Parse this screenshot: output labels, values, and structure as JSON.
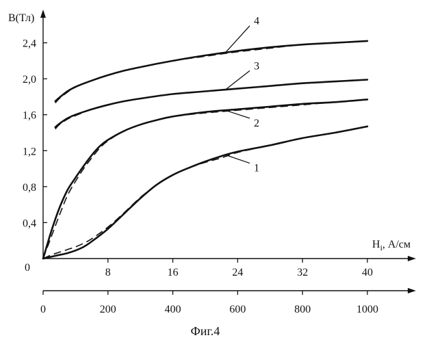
{
  "chart_data": {
    "type": "line",
    "title": "",
    "caption": "Фиг.4",
    "ylabel": "B(Тл)",
    "xlabel_main": "H",
    "xlabel_sub": "i",
    "xlabel_unit": ", А/см",
    "origin_label": "0",
    "ylim": [
      0,
      2.8
    ],
    "xlim": [
      0,
      40
    ],
    "y_ticks": [
      {
        "value": 0.4,
        "label": "0,4"
      },
      {
        "value": 0.8,
        "label": "0,8"
      },
      {
        "value": 1.2,
        "label": "1,2"
      },
      {
        "value": 1.6,
        "label": "1,6"
      },
      {
        "value": 2.0,
        "label": "2,0"
      },
      {
        "value": 2.4,
        "label": "2,4"
      }
    ],
    "x_ticks": [
      {
        "value": 8,
        "label": "8"
      },
      {
        "value": 16,
        "label": "16"
      },
      {
        "value": 24,
        "label": "24"
      },
      {
        "value": 32,
        "label": "32"
      },
      {
        "value": 40,
        "label": "40"
      }
    ],
    "x2_ticks": [
      {
        "value": 0,
        "label": "0"
      },
      {
        "value": 200,
        "label": "200"
      },
      {
        "value": 400,
        "label": "400"
      },
      {
        "value": 600,
        "label": "600"
      },
      {
        "value": 800,
        "label": "800"
      },
      {
        "value": 1000,
        "label": "1000"
      }
    ],
    "x2_range": [
      0,
      1000
    ],
    "grid": false,
    "series": [
      {
        "label": "1",
        "x": [
          0,
          1,
          2,
          3,
          4,
          5,
          6,
          8,
          10,
          12,
          14,
          16,
          18,
          20,
          22,
          24,
          28,
          32,
          36,
          40
        ],
        "y": [
          0,
          0.02,
          0.04,
          0.06,
          0.09,
          0.13,
          0.19,
          0.33,
          0.5,
          0.67,
          0.82,
          0.93,
          1.01,
          1.08,
          1.14,
          1.19,
          1.26,
          1.34,
          1.4,
          1.47
        ],
        "y_dash": [
          0,
          0.04,
          0.07,
          0.1,
          0.13,
          0.17,
          0.22,
          0.35,
          0.51,
          0.68,
          0.82,
          0.93,
          1.01,
          1.07,
          1.12,
          1.18,
          1.26,
          1.34,
          1.4,
          1.47
        ],
        "label_at": [
          26,
          1.0
        ]
      },
      {
        "label": "2",
        "x": [
          0,
          1,
          2,
          3,
          4,
          5,
          6,
          7,
          8,
          10,
          12,
          14,
          16,
          20,
          24,
          28,
          32,
          36,
          40
        ],
        "y": [
          0,
          0.3,
          0.56,
          0.76,
          0.9,
          1.03,
          1.15,
          1.25,
          1.32,
          1.42,
          1.49,
          1.54,
          1.58,
          1.63,
          1.66,
          1.69,
          1.72,
          1.74,
          1.77
        ],
        "y_dash": [
          0,
          0.24,
          0.48,
          0.7,
          0.86,
          1.0,
          1.12,
          1.23,
          1.31,
          1.42,
          1.49,
          1.54,
          1.58,
          1.62,
          1.65,
          1.68,
          1.71,
          1.74,
          1.77
        ],
        "label_at": [
          26,
          1.5
        ]
      },
      {
        "label": "3",
        "x": [
          1.5,
          2,
          3,
          4,
          6,
          8,
          10,
          12,
          16,
          20,
          24,
          28,
          32,
          36,
          40
        ],
        "y": [
          1.46,
          1.5,
          1.56,
          1.6,
          1.66,
          1.71,
          1.75,
          1.78,
          1.83,
          1.86,
          1.89,
          1.92,
          1.95,
          1.97,
          1.99
        ],
        "y_dash": [
          1.44,
          1.49,
          1.55,
          1.59,
          1.66,
          1.71,
          1.75,
          1.78,
          1.83,
          1.86,
          1.89,
          1.92,
          1.95,
          1.97,
          1.99
        ],
        "label_at": [
          26,
          2.12
        ]
      },
      {
        "label": "4",
        "x": [
          1.5,
          2,
          3,
          4,
          6,
          8,
          10,
          12,
          16,
          20,
          24,
          28,
          32,
          36,
          40
        ],
        "y": [
          1.75,
          1.79,
          1.86,
          1.91,
          1.98,
          2.04,
          2.09,
          2.13,
          2.2,
          2.26,
          2.31,
          2.35,
          2.38,
          2.4,
          2.42
        ],
        "y_dash": [
          1.73,
          1.78,
          1.85,
          1.91,
          1.98,
          2.04,
          2.09,
          2.13,
          2.2,
          2.25,
          2.3,
          2.34,
          2.38,
          2.4,
          2.42
        ],
        "label_at": [
          26,
          2.62
        ]
      }
    ]
  }
}
